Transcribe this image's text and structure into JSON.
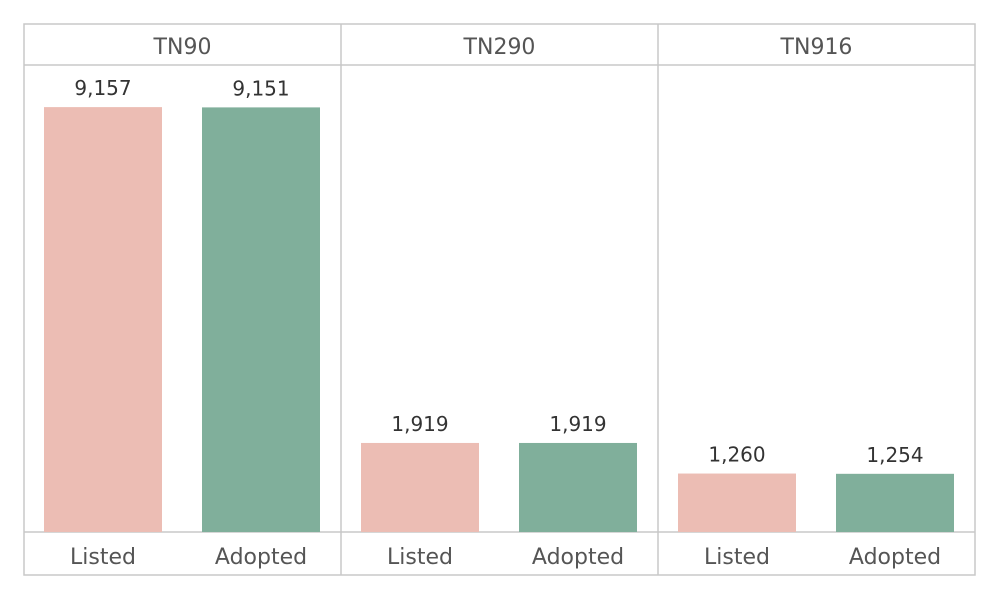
{
  "chart_data": {
    "type": "bar",
    "panels": [
      {
        "name": "TN90",
        "categories": [
          "Listed",
          "Adopted"
        ],
        "values": [
          9157,
          9151
        ],
        "labels": [
          "9,157",
          "9,151"
        ]
      },
      {
        "name": "TN290",
        "categories": [
          "Listed",
          "Adopted"
        ],
        "values": [
          1919,
          1919
        ],
        "labels": [
          "1,919",
          "1,919"
        ]
      },
      {
        "name": "TN916",
        "categories": [
          "Listed",
          "Adopted"
        ],
        "values": [
          1260,
          1254
        ],
        "labels": [
          "1,260",
          "1,254"
        ]
      }
    ],
    "ylim": [
      0,
      10000
    ],
    "grid": false,
    "colors": {
      "Listed": "#ecbdb4",
      "Adopted": "#80af9b"
    },
    "border_color": "#c8c8c8"
  }
}
